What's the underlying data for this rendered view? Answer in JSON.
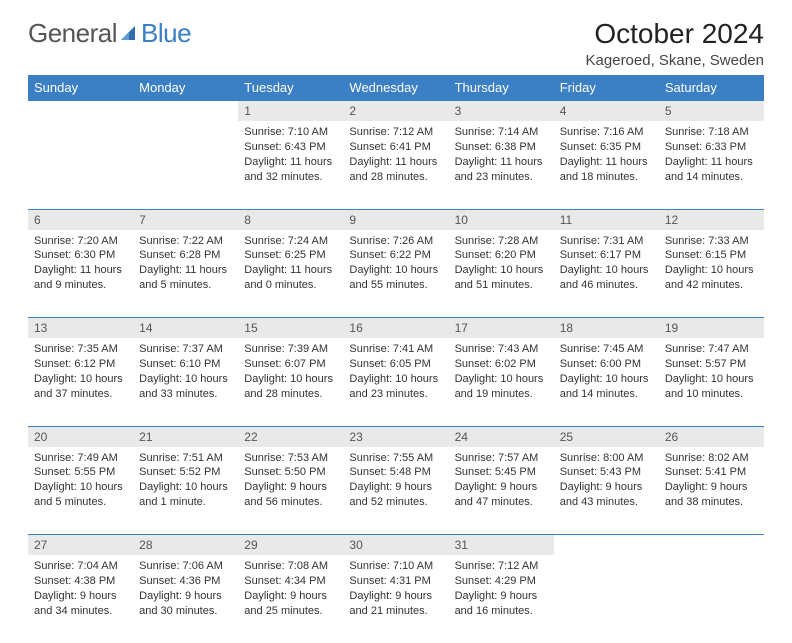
{
  "brand": {
    "part1": "General",
    "part2": "Blue"
  },
  "title": "October 2024",
  "location": "Kageroed, Skane, Sweden",
  "colors": {
    "header_bg": "#3b7fc4",
    "header_text": "#ffffff",
    "daynum_bg": "#e9e9e9",
    "daynum_text": "#555555",
    "body_text": "#333333",
    "rule": "#3b7fc4"
  },
  "weekdays": [
    "Sunday",
    "Monday",
    "Tuesday",
    "Wednesday",
    "Thursday",
    "Friday",
    "Saturday"
  ],
  "weeks": [
    {
      "nums": [
        "",
        "",
        "1",
        "2",
        "3",
        "4",
        "5"
      ],
      "details": [
        {},
        {},
        {
          "sunrise": "Sunrise: 7:10 AM",
          "sunset": "Sunset: 6:43 PM",
          "day1": "Daylight: 11 hours",
          "day2": "and 32 minutes."
        },
        {
          "sunrise": "Sunrise: 7:12 AM",
          "sunset": "Sunset: 6:41 PM",
          "day1": "Daylight: 11 hours",
          "day2": "and 28 minutes."
        },
        {
          "sunrise": "Sunrise: 7:14 AM",
          "sunset": "Sunset: 6:38 PM",
          "day1": "Daylight: 11 hours",
          "day2": "and 23 minutes."
        },
        {
          "sunrise": "Sunrise: 7:16 AM",
          "sunset": "Sunset: 6:35 PM",
          "day1": "Daylight: 11 hours",
          "day2": "and 18 minutes."
        },
        {
          "sunrise": "Sunrise: 7:18 AM",
          "sunset": "Sunset: 6:33 PM",
          "day1": "Daylight: 11 hours",
          "day2": "and 14 minutes."
        }
      ]
    },
    {
      "nums": [
        "6",
        "7",
        "8",
        "9",
        "10",
        "11",
        "12"
      ],
      "details": [
        {
          "sunrise": "Sunrise: 7:20 AM",
          "sunset": "Sunset: 6:30 PM",
          "day1": "Daylight: 11 hours",
          "day2": "and 9 minutes."
        },
        {
          "sunrise": "Sunrise: 7:22 AM",
          "sunset": "Sunset: 6:28 PM",
          "day1": "Daylight: 11 hours",
          "day2": "and 5 minutes."
        },
        {
          "sunrise": "Sunrise: 7:24 AM",
          "sunset": "Sunset: 6:25 PM",
          "day1": "Daylight: 11 hours",
          "day2": "and 0 minutes."
        },
        {
          "sunrise": "Sunrise: 7:26 AM",
          "sunset": "Sunset: 6:22 PM",
          "day1": "Daylight: 10 hours",
          "day2": "and 55 minutes."
        },
        {
          "sunrise": "Sunrise: 7:28 AM",
          "sunset": "Sunset: 6:20 PM",
          "day1": "Daylight: 10 hours",
          "day2": "and 51 minutes."
        },
        {
          "sunrise": "Sunrise: 7:31 AM",
          "sunset": "Sunset: 6:17 PM",
          "day1": "Daylight: 10 hours",
          "day2": "and 46 minutes."
        },
        {
          "sunrise": "Sunrise: 7:33 AM",
          "sunset": "Sunset: 6:15 PM",
          "day1": "Daylight: 10 hours",
          "day2": "and 42 minutes."
        }
      ]
    },
    {
      "nums": [
        "13",
        "14",
        "15",
        "16",
        "17",
        "18",
        "19"
      ],
      "details": [
        {
          "sunrise": "Sunrise: 7:35 AM",
          "sunset": "Sunset: 6:12 PM",
          "day1": "Daylight: 10 hours",
          "day2": "and 37 minutes."
        },
        {
          "sunrise": "Sunrise: 7:37 AM",
          "sunset": "Sunset: 6:10 PM",
          "day1": "Daylight: 10 hours",
          "day2": "and 33 minutes."
        },
        {
          "sunrise": "Sunrise: 7:39 AM",
          "sunset": "Sunset: 6:07 PM",
          "day1": "Daylight: 10 hours",
          "day2": "and 28 minutes."
        },
        {
          "sunrise": "Sunrise: 7:41 AM",
          "sunset": "Sunset: 6:05 PM",
          "day1": "Daylight: 10 hours",
          "day2": "and 23 minutes."
        },
        {
          "sunrise": "Sunrise: 7:43 AM",
          "sunset": "Sunset: 6:02 PM",
          "day1": "Daylight: 10 hours",
          "day2": "and 19 minutes."
        },
        {
          "sunrise": "Sunrise: 7:45 AM",
          "sunset": "Sunset: 6:00 PM",
          "day1": "Daylight: 10 hours",
          "day2": "and 14 minutes."
        },
        {
          "sunrise": "Sunrise: 7:47 AM",
          "sunset": "Sunset: 5:57 PM",
          "day1": "Daylight: 10 hours",
          "day2": "and 10 minutes."
        }
      ]
    },
    {
      "nums": [
        "20",
        "21",
        "22",
        "23",
        "24",
        "25",
        "26"
      ],
      "details": [
        {
          "sunrise": "Sunrise: 7:49 AM",
          "sunset": "Sunset: 5:55 PM",
          "day1": "Daylight: 10 hours",
          "day2": "and 5 minutes."
        },
        {
          "sunrise": "Sunrise: 7:51 AM",
          "sunset": "Sunset: 5:52 PM",
          "day1": "Daylight: 10 hours",
          "day2": "and 1 minute."
        },
        {
          "sunrise": "Sunrise: 7:53 AM",
          "sunset": "Sunset: 5:50 PM",
          "day1": "Daylight: 9 hours",
          "day2": "and 56 minutes."
        },
        {
          "sunrise": "Sunrise: 7:55 AM",
          "sunset": "Sunset: 5:48 PM",
          "day1": "Daylight: 9 hours",
          "day2": "and 52 minutes."
        },
        {
          "sunrise": "Sunrise: 7:57 AM",
          "sunset": "Sunset: 5:45 PM",
          "day1": "Daylight: 9 hours",
          "day2": "and 47 minutes."
        },
        {
          "sunrise": "Sunrise: 8:00 AM",
          "sunset": "Sunset: 5:43 PM",
          "day1": "Daylight: 9 hours",
          "day2": "and 43 minutes."
        },
        {
          "sunrise": "Sunrise: 8:02 AM",
          "sunset": "Sunset: 5:41 PM",
          "day1": "Daylight: 9 hours",
          "day2": "and 38 minutes."
        }
      ]
    },
    {
      "nums": [
        "27",
        "28",
        "29",
        "30",
        "31",
        "",
        ""
      ],
      "details": [
        {
          "sunrise": "Sunrise: 7:04 AM",
          "sunset": "Sunset: 4:38 PM",
          "day1": "Daylight: 9 hours",
          "day2": "and 34 minutes."
        },
        {
          "sunrise": "Sunrise: 7:06 AM",
          "sunset": "Sunset: 4:36 PM",
          "day1": "Daylight: 9 hours",
          "day2": "and 30 minutes."
        },
        {
          "sunrise": "Sunrise: 7:08 AM",
          "sunset": "Sunset: 4:34 PM",
          "day1": "Daylight: 9 hours",
          "day2": "and 25 minutes."
        },
        {
          "sunrise": "Sunrise: 7:10 AM",
          "sunset": "Sunset: 4:31 PM",
          "day1": "Daylight: 9 hours",
          "day2": "and 21 minutes."
        },
        {
          "sunrise": "Sunrise: 7:12 AM",
          "sunset": "Sunset: 4:29 PM",
          "day1": "Daylight: 9 hours",
          "day2": "and 16 minutes."
        },
        {},
        {}
      ]
    }
  ]
}
